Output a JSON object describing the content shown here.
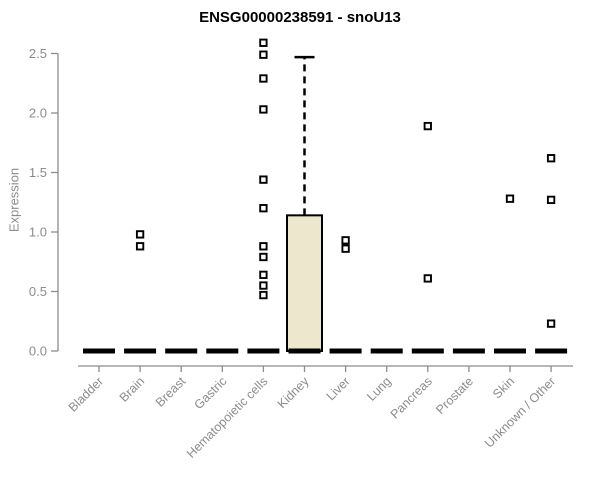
{
  "chart_data": {
    "type": "boxplot",
    "title": "ENSG00000238591 - snoU13",
    "ylabel": "Expression",
    "xlabel": "",
    "ylim": [
      0,
      2.5
    ],
    "grid": false,
    "legend": null,
    "ytick_values": [
      0,
      0.5,
      1.0,
      1.5,
      2.0,
      2.5
    ],
    "ytick_labels": [
      "0.0",
      "0.5",
      "1.0",
      "1.5",
      "2.0",
      "2.5"
    ],
    "categories": [
      "Bladder",
      "Brain",
      "Breast",
      "Gastric",
      "Hematopoietic cells",
      "Kidney",
      "Liver",
      "Lung",
      "Pancreas",
      "Prostate",
      "Skin",
      "Unknown / Other"
    ],
    "series": [
      {
        "category": "Bladder",
        "median": 0,
        "q1": 0,
        "q3": 0,
        "whisker_low": 0,
        "whisker_high": 0,
        "outliers": []
      },
      {
        "category": "Brain",
        "median": 0,
        "q1": 0,
        "q3": 0,
        "whisker_low": 0,
        "whisker_high": 0,
        "outliers": [
          0.98,
          0.88
        ]
      },
      {
        "category": "Breast",
        "median": 0,
        "q1": 0,
        "q3": 0,
        "whisker_low": 0,
        "whisker_high": 0,
        "outliers": []
      },
      {
        "category": "Gastric",
        "median": 0,
        "q1": 0,
        "q3": 0,
        "whisker_low": 0,
        "whisker_high": 0,
        "outliers": []
      },
      {
        "category": "Hematopoietic cells",
        "median": 0,
        "q1": 0,
        "q3": 0,
        "whisker_low": 0,
        "whisker_high": 0,
        "outliers": [
          2.59,
          2.49,
          2.29,
          2.03,
          1.44,
          1.2,
          0.88,
          0.79,
          0.64,
          0.55,
          0.47
        ]
      },
      {
        "category": "Kidney",
        "median": 0,
        "q1": 0,
        "q3": 1.14,
        "whisker_low": 0,
        "whisker_high": 2.47,
        "outliers": []
      },
      {
        "category": "Liver",
        "median": 0,
        "q1": 0,
        "q3": 0,
        "whisker_low": 0,
        "whisker_high": 0,
        "outliers": [
          0.93,
          0.86
        ]
      },
      {
        "category": "Lung",
        "median": 0,
        "q1": 0,
        "q3": 0,
        "whisker_low": 0,
        "whisker_high": 0,
        "outliers": []
      },
      {
        "category": "Pancreas",
        "median": 0,
        "q1": 0,
        "q3": 0,
        "whisker_low": 0,
        "whisker_high": 0,
        "outliers": [
          1.89,
          0.61
        ]
      },
      {
        "category": "Prostate",
        "median": 0,
        "q1": 0,
        "q3": 0,
        "whisker_low": 0,
        "whisker_high": 0,
        "outliers": []
      },
      {
        "category": "Skin",
        "median": 0,
        "q1": 0,
        "q3": 0,
        "whisker_low": 0,
        "whisker_high": 0,
        "outliers": [
          1.28
        ]
      },
      {
        "category": "Unknown / Other",
        "median": 0,
        "q1": 0,
        "q3": 0,
        "whisker_low": 0,
        "whisker_high": 0,
        "outliers": [
          1.62,
          1.27,
          0.23
        ]
      }
    ],
    "colors": {
      "title": "#000000",
      "axis": "#8c8c8c",
      "box_fill": "#ede7cd",
      "box_stroke": "#000000",
      "median": "#000000",
      "outlier_stroke": "#000000",
      "outlier_fill": "#ffffff"
    }
  }
}
